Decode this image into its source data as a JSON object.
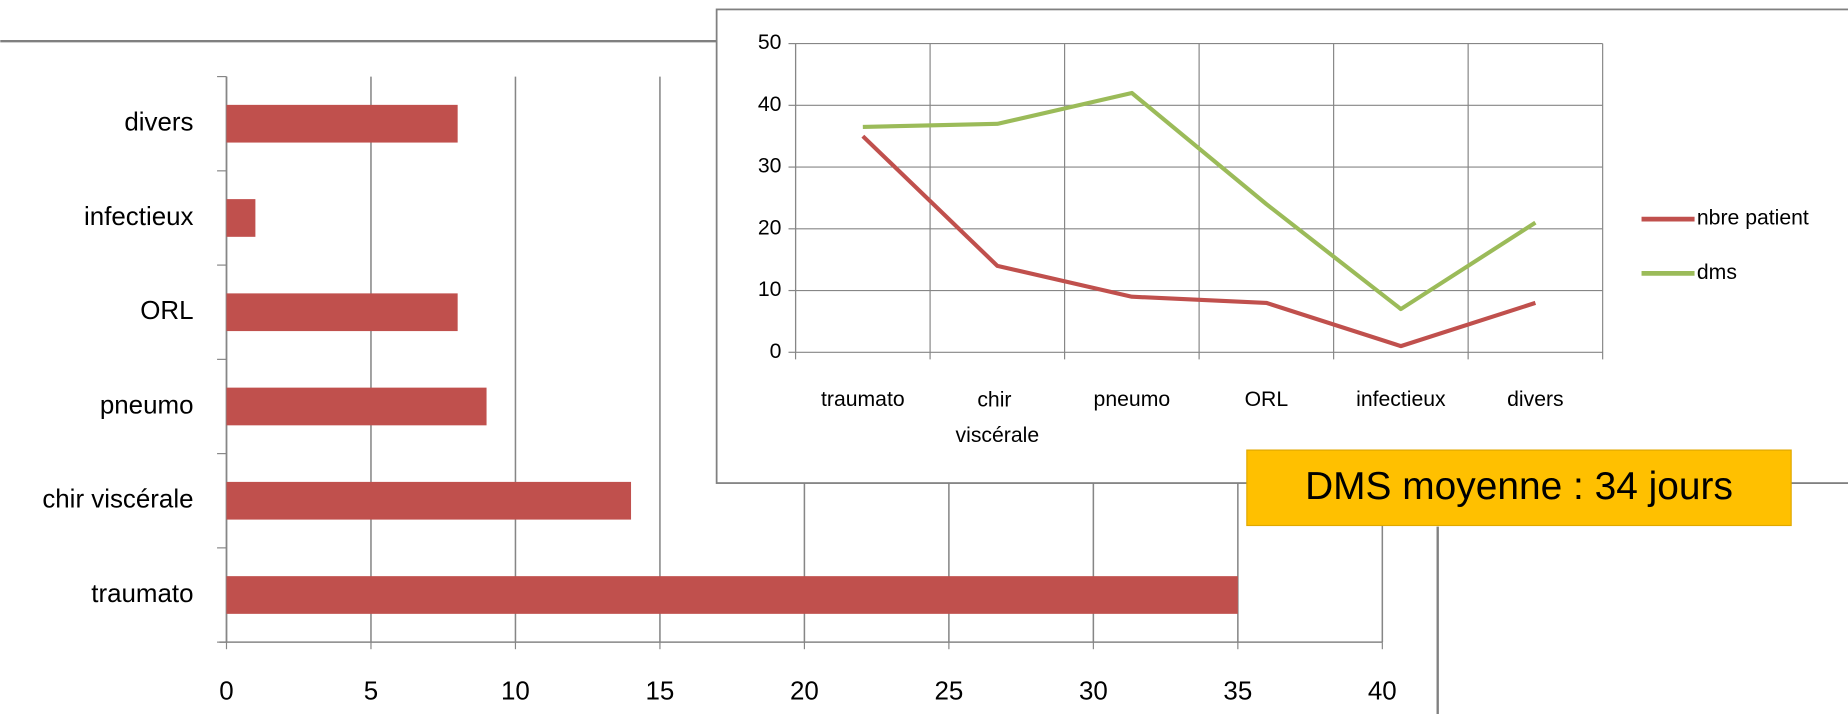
{
  "chart_data": [
    {
      "type": "bar",
      "orientation": "horizontal",
      "categories": [
        "traumato",
        "chir viscérale",
        "pneumo",
        "ORL",
        "infectieux",
        "divers"
      ],
      "values": [
        35,
        14,
        9,
        8,
        1,
        8
      ],
      "color": "#c0504d",
      "xlim": [
        0,
        40
      ],
      "xticks": [
        0,
        5,
        10,
        15,
        20,
        25,
        30,
        35,
        40
      ],
      "grid": true
    },
    {
      "type": "line",
      "categories": [
        "traumato",
        "chir viscérale",
        "pneumo",
        "ORL",
        "infectieux",
        "divers"
      ],
      "series": [
        {
          "name": "nbre patient",
          "color": "#c0504d",
          "values": [
            35,
            14,
            9,
            8,
            1,
            8
          ]
        },
        {
          "name": "dms",
          "color": "#9bbb59",
          "values": [
            36.5,
            37,
            42,
            24,
            7,
            21
          ]
        }
      ],
      "ylim": [
        0,
        50
      ],
      "yticks": [
        0,
        10,
        20,
        30,
        40,
        50
      ],
      "grid": true,
      "legend": "right",
      "annotation": "DMS moyenne : 34 jours"
    }
  ]
}
